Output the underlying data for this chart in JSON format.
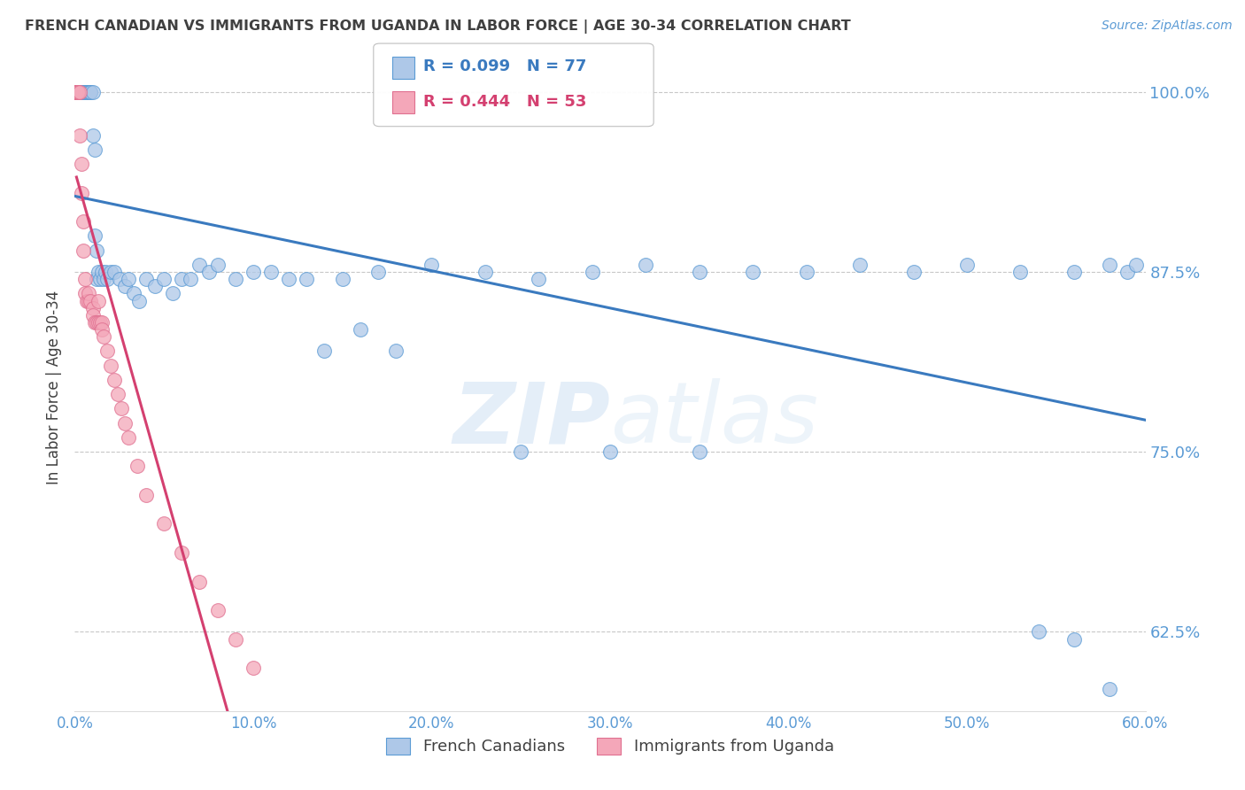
{
  "title": "FRENCH CANADIAN VS IMMIGRANTS FROM UGANDA IN LABOR FORCE | AGE 30-34 CORRELATION CHART",
  "source": "Source: ZipAtlas.com",
  "ylabel": "In Labor Force | Age 30-34",
  "xlim": [
    0.0,
    0.6
  ],
  "ylim": [
    0.57,
    1.02
  ],
  "xticks": [
    0.0,
    0.1,
    0.2,
    0.3,
    0.4,
    0.5,
    0.6
  ],
  "xticklabels": [
    "0.0%",
    "10.0%",
    "20.0%",
    "30.0%",
    "40.0%",
    "50.0%",
    "60.0%"
  ],
  "yticks_right": [
    0.625,
    0.75,
    0.875,
    1.0
  ],
  "ytick_right_labels": [
    "62.5%",
    "75.0%",
    "87.5%",
    "100.0%"
  ],
  "blue_color": "#aec8e8",
  "pink_color": "#f4a7b9",
  "blue_edge_color": "#5b9bd5",
  "pink_edge_color": "#e07090",
  "blue_line_color": "#3a7abf",
  "pink_line_color": "#d44070",
  "legend_blue_R": "R = 0.099",
  "legend_blue_N": "N = 77",
  "legend_pink_R": "R = 0.444",
  "legend_pink_N": "N = 53",
  "blue_scatter_x": [
    0.001,
    0.002,
    0.002,
    0.003,
    0.003,
    0.004,
    0.004,
    0.005,
    0.005,
    0.006,
    0.006,
    0.007,
    0.007,
    0.008,
    0.008,
    0.009,
    0.009,
    0.01,
    0.01,
    0.011,
    0.011,
    0.012,
    0.012,
    0.013,
    0.014,
    0.015,
    0.016,
    0.017,
    0.018,
    0.02,
    0.022,
    0.025,
    0.028,
    0.03,
    0.033,
    0.036,
    0.04,
    0.045,
    0.05,
    0.055,
    0.06,
    0.065,
    0.07,
    0.075,
    0.08,
    0.09,
    0.1,
    0.11,
    0.12,
    0.13,
    0.15,
    0.17,
    0.2,
    0.23,
    0.26,
    0.29,
    0.32,
    0.35,
    0.38,
    0.41,
    0.44,
    0.47,
    0.5,
    0.53,
    0.56,
    0.58,
    0.59,
    0.595,
    0.14,
    0.16,
    0.18,
    0.25,
    0.3,
    0.35,
    0.54,
    0.56,
    0.58
  ],
  "blue_scatter_y": [
    1.0,
    1.0,
    1.0,
    1.0,
    1.0,
    1.0,
    1.0,
    1.0,
    1.0,
    1.0,
    1.0,
    1.0,
    1.0,
    1.0,
    1.0,
    1.0,
    1.0,
    1.0,
    0.97,
    0.96,
    0.9,
    0.89,
    0.87,
    0.875,
    0.87,
    0.875,
    0.87,
    0.875,
    0.87,
    0.875,
    0.875,
    0.87,
    0.865,
    0.87,
    0.86,
    0.855,
    0.87,
    0.865,
    0.87,
    0.86,
    0.87,
    0.87,
    0.88,
    0.875,
    0.88,
    0.87,
    0.875,
    0.875,
    0.87,
    0.87,
    0.87,
    0.875,
    0.88,
    0.875,
    0.87,
    0.875,
    0.88,
    0.875,
    0.875,
    0.875,
    0.88,
    0.875,
    0.88,
    0.875,
    0.875,
    0.88,
    0.875,
    0.88,
    0.82,
    0.835,
    0.82,
    0.75,
    0.75,
    0.75,
    0.625,
    0.62,
    0.585
  ],
  "pink_scatter_x": [
    0.001,
    0.001,
    0.001,
    0.001,
    0.001,
    0.001,
    0.001,
    0.001,
    0.001,
    0.001,
    0.001,
    0.001,
    0.002,
    0.002,
    0.002,
    0.002,
    0.003,
    0.003,
    0.004,
    0.004,
    0.005,
    0.005,
    0.006,
    0.006,
    0.007,
    0.008,
    0.008,
    0.009,
    0.01,
    0.01,
    0.011,
    0.012,
    0.013,
    0.013,
    0.014,
    0.015,
    0.015,
    0.016,
    0.018,
    0.02,
    0.022,
    0.024,
    0.026,
    0.028,
    0.03,
    0.035,
    0.04,
    0.05,
    0.06,
    0.07,
    0.08,
    0.09,
    0.1
  ],
  "pink_scatter_y": [
    1.0,
    1.0,
    1.0,
    1.0,
    1.0,
    1.0,
    1.0,
    1.0,
    1.0,
    1.0,
    1.0,
    1.0,
    1.0,
    1.0,
    1.0,
    1.0,
    1.0,
    0.97,
    0.95,
    0.93,
    0.91,
    0.89,
    0.87,
    0.86,
    0.855,
    0.855,
    0.86,
    0.855,
    0.85,
    0.845,
    0.84,
    0.84,
    0.84,
    0.855,
    0.84,
    0.84,
    0.835,
    0.83,
    0.82,
    0.81,
    0.8,
    0.79,
    0.78,
    0.77,
    0.76,
    0.74,
    0.72,
    0.7,
    0.68,
    0.66,
    0.64,
    0.62,
    0.6
  ],
  "watermark_zip": "ZIP",
  "watermark_atlas": "atlas",
  "background_color": "#ffffff",
  "grid_color": "#c8c8c8",
  "axis_color": "#5b9bd5",
  "title_color": "#404040",
  "ylabel_color": "#404040"
}
